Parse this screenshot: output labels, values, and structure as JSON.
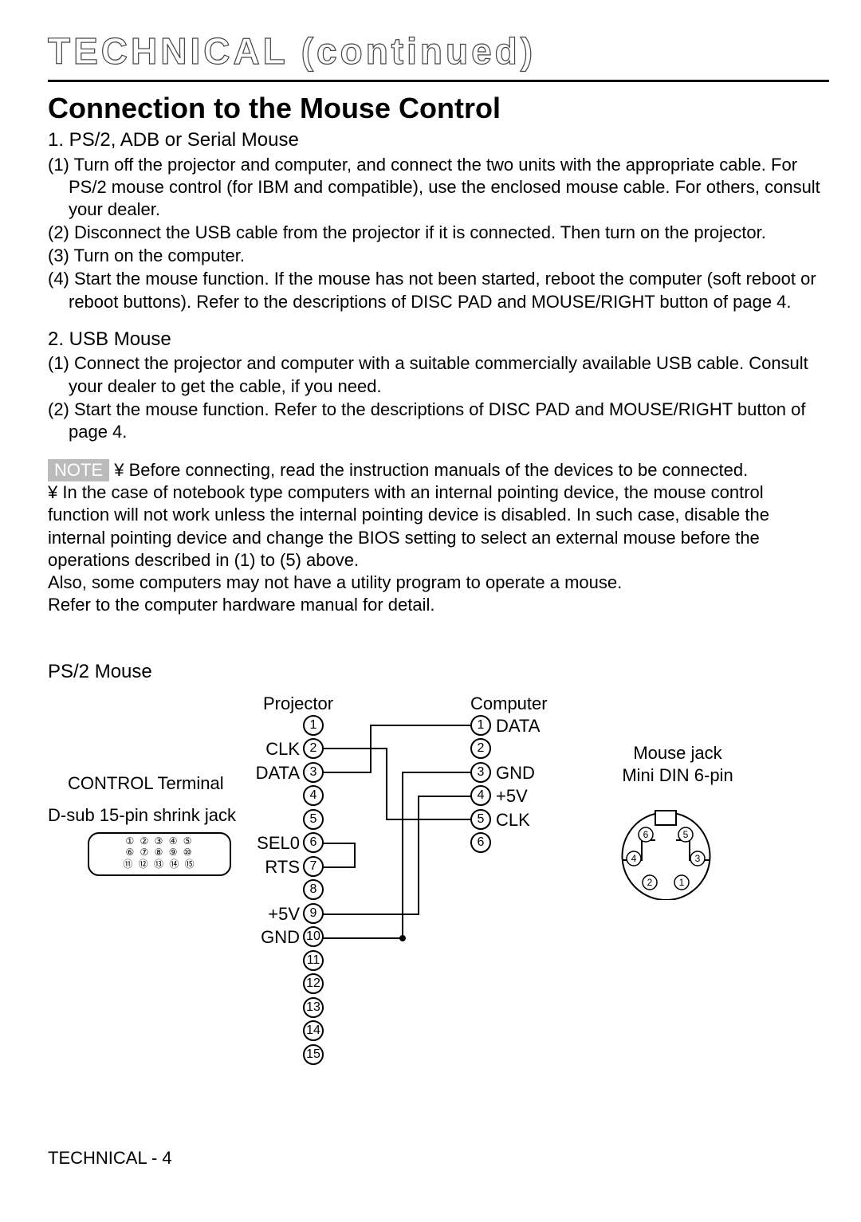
{
  "title_outline": "TECHNICAL (continued)",
  "heading": "Connection to the Mouse Control",
  "s1_title": "1. PS/2, ADB or Serial Mouse",
  "s1_p1": "(1) Turn off the projector and computer, and connect the two units with the appropriate cable. For PS/2 mouse control (for IBM and compatible), use the enclosed mouse cable. For others, consult your dealer.",
  "s1_p2": "(2) Disconnect the USB cable from the projector if it is connected. Then turn on the projector.",
  "s1_p3": "(3) Turn on the computer.",
  "s1_p4": "(4) Start the mouse function. If the mouse has not been started, reboot the computer (soft reboot or reboot buttons). Refer to the descriptions of DISC PAD  and  MOUSE/RIGHT button of page 4.",
  "s2_title": "2. USB Mouse",
  "s2_p1": "(1) Connect the projector and computer with a suitable commercially available USB cable. Consult your dealer to get the cable, if you need.",
  "s2_p2": "(2) Start the mouse function. Refer to the descriptions of DISC PAD  and  MOUSE/RIGHT button  of page 4.",
  "note_label": "NOTE",
  "note_first_line": "¥ Before connecting, read the instruction manuals of the devices to be connected.",
  "note_body_1": "¥ In the case of notebook type computers with an internal pointing device, the mouse control function will not work unless the internal pointing device is disabled. In such case, disable the internal pointing device and change the BIOS setting to select an external mouse before the operations described in (1) to (5) above.",
  "note_body_2": "Also, some computers may not have a utility program to operate a mouse.",
  "note_body_3": "Refer to the computer hardware manual for detail.",
  "diag_title": "PS/2 Mouse",
  "labels": {
    "control_terminal": "CONTROL Terminal",
    "dsub": "D-sub 15-pin shrink jack",
    "projector": "Projector",
    "computer": "Computer",
    "mouse_jack": "Mouse jack",
    "mini_din": "Mini DIN 6-pin"
  },
  "projector_pins": [
    {
      "n": "1",
      "label": ""
    },
    {
      "n": "2",
      "label": "CLK"
    },
    {
      "n": "3",
      "label": "DATA"
    },
    {
      "n": "4",
      "label": ""
    },
    {
      "n": "5",
      "label": ""
    },
    {
      "n": "6",
      "label": "SEL0"
    },
    {
      "n": "7",
      "label": "RTS"
    },
    {
      "n": "8",
      "label": ""
    },
    {
      "n": "9",
      "label": "+5V"
    },
    {
      "n": "10",
      "label": "GND"
    },
    {
      "n": "11",
      "label": ""
    },
    {
      "n": "12",
      "label": ""
    },
    {
      "n": "13",
      "label": ""
    },
    {
      "n": "14",
      "label": ""
    },
    {
      "n": "15",
      "label": ""
    }
  ],
  "computer_pins": [
    {
      "n": "1",
      "label": "DATA"
    },
    {
      "n": "2",
      "label": ""
    },
    {
      "n": "3",
      "label": "GND"
    },
    {
      "n": "4",
      "label": "+5V"
    },
    {
      "n": "5",
      "label": "CLK"
    },
    {
      "n": "6",
      "label": ""
    }
  ],
  "dsub_rows": [
    "① ② ③ ④ ⑤",
    "⑥ ⑦ ⑧ ⑨ ⑩",
    "⑪ ⑫ ⑬ ⑭ ⑮"
  ],
  "diagram_style": {
    "line_color": "#000",
    "line_width": 2,
    "pin_circle_diameter": 26,
    "pin_font_size": 16,
    "label_font_size": 22
  },
  "wiring": [
    {
      "from_projector_pin": 2,
      "to_computer_pin": 5,
      "desc": "CLK"
    },
    {
      "from_projector_pin": 3,
      "to_computer_pin": 1,
      "desc": "DATA"
    },
    {
      "from_projector_pin": 6,
      "loop_to": 7,
      "desc": "SEL0-RTS loopback"
    },
    {
      "from_projector_pin": 9,
      "to_computer_pin": 4,
      "desc": "+5V"
    },
    {
      "from_projector_pin": 10,
      "to_computer_pin": 3,
      "desc": "GND"
    }
  ],
  "din_pins": [
    "1",
    "2",
    "3",
    "4",
    "5",
    "6"
  ],
  "footer": "TECHNICAL - 4"
}
